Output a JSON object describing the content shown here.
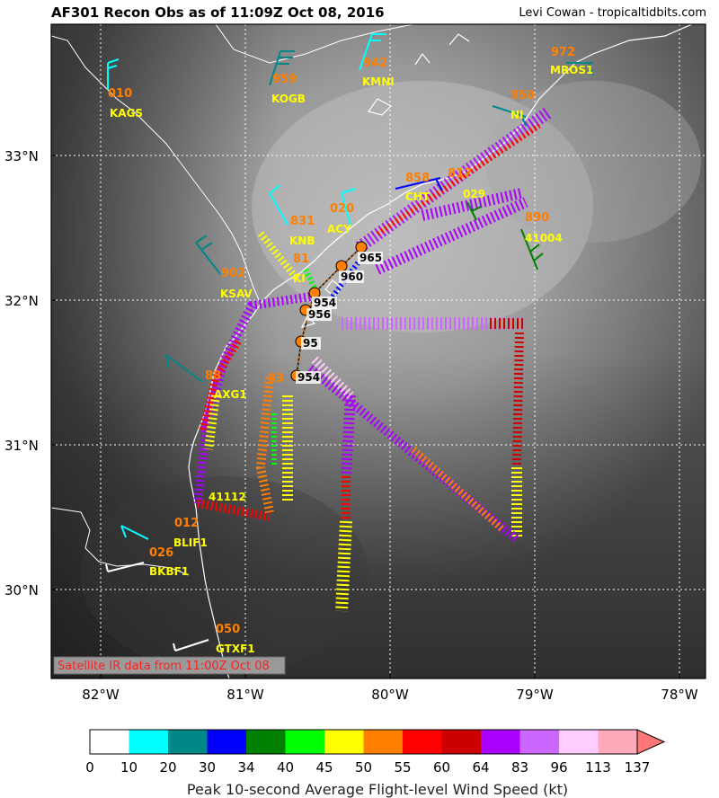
{
  "title": "AF301 Recon Obs as of 11:09Z Oct 08, 2016",
  "credit": "Levi Cowan - tropicaltidbits.com",
  "satellite_note": "Satellite IR data from 11:00Z Oct 08",
  "axes": {
    "lat_labels": [
      "33°N",
      "32°N",
      "31°N",
      "30°N"
    ],
    "lon_labels": [
      "82°W",
      "81°W",
      "80°W",
      "79°W",
      "78°W"
    ]
  },
  "stations": [
    {
      "id": "KAGS",
      "value": "010",
      "barb_color": "#00ffff"
    },
    {
      "id": "KOGB",
      "value": "959",
      "barb_color": "#008888"
    },
    {
      "id": "KMNI",
      "value": "942",
      "barb_color": "#00ffff"
    },
    {
      "id": "MROS1",
      "value": "972",
      "barb_color": "#008888"
    },
    {
      "id": "NI",
      "value": "950",
      "barb_color": "#008888"
    },
    {
      "id": "CHT",
      "value": "858",
      "barb_color": "#0000ff"
    },
    {
      "id": "029",
      "value": "817",
      "barb_color": "#008000"
    },
    {
      "id": "KNB",
      "value": "831",
      "barb_color": "#00ffff"
    },
    {
      "id": "ACY",
      "value": "020",
      "barb_color": "#00ffff"
    },
    {
      "id": "41004",
      "value": "890",
      "barb_color": "#008000"
    },
    {
      "id": "KSAV",
      "value": "902",
      "barb_color": "#008888"
    },
    {
      "id": "KI",
      "value": "81",
      "barb_color": "#ffff00"
    },
    {
      "id": "AXG1",
      "value": "88",
      "barb_color": "#008888"
    },
    {
      "id": "41112",
      "value": "83",
      "barb_color": "#ffff00"
    },
    {
      "id": "BLIF1",
      "value": "012",
      "barb_color": "#00ffff"
    },
    {
      "id": "BKBF1",
      "value": "026",
      "barb_color": "#ffffff"
    },
    {
      "id": "GTXF1",
      "value": "050",
      "barb_color": "#ffffff"
    }
  ],
  "center_obs": [
    "965",
    "960",
    "954",
    "956",
    "95",
    "954"
  ],
  "colorbar": {
    "title": "Peak 10-second Average Flight-level Wind Speed (kt)",
    "ticks": [
      "0",
      "10",
      "20",
      "30",
      "34",
      "40",
      "45",
      "50",
      "55",
      "60",
      "64",
      "83",
      "96",
      "113",
      "137"
    ],
    "colors": [
      "#ffffff",
      "#00ffff",
      "#008888",
      "#0000ff",
      "#008000",
      "#00ff00",
      "#ffff00",
      "#ff7f00",
      "#ff0000",
      "#cc0000",
      "#aa00ff",
      "#cc66ff",
      "#ffccff",
      "#ffaabb",
      "#ff7777"
    ]
  }
}
